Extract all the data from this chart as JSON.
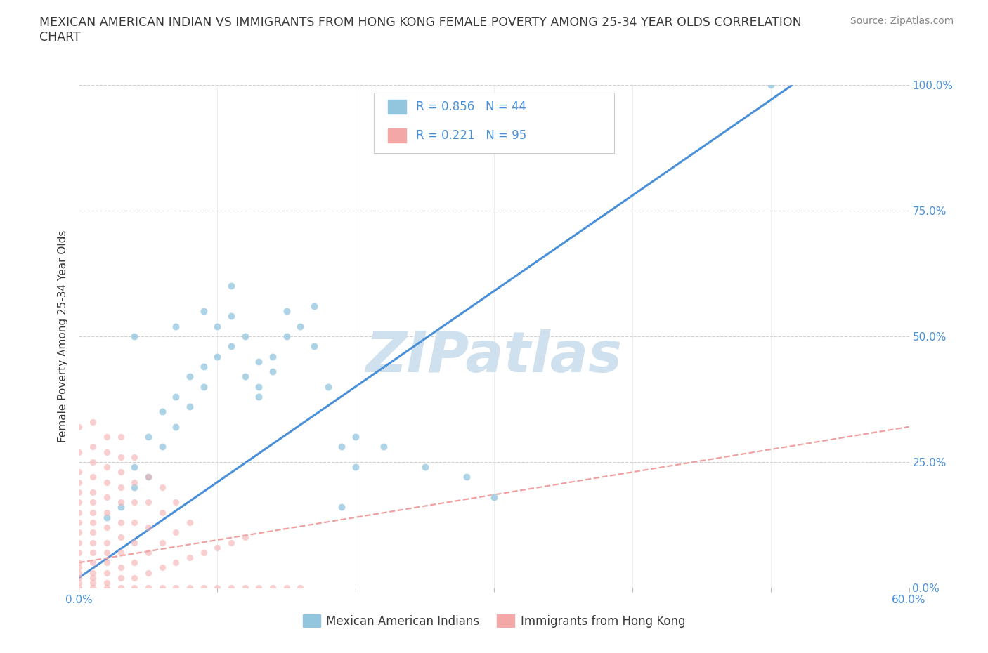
{
  "title": "MEXICAN AMERICAN INDIAN VS IMMIGRANTS FROM HONG KONG FEMALE POVERTY AMONG 25-34 YEAR OLDS CORRELATION\nCHART",
  "source_text": "Source: ZipAtlas.com",
  "ylabel": "Female Poverty Among 25-34 Year Olds",
  "xlim": [
    0,
    0.6
  ],
  "ylim": [
    0,
    1.0
  ],
  "blue_color": "#92c5de",
  "pink_color": "#f4a7a7",
  "blue_label": "Mexican American Indians",
  "pink_label": "Immigrants from Hong Kong",
  "R_blue": 0.856,
  "N_blue": 44,
  "R_pink": 0.221,
  "N_pink": 95,
  "watermark": "ZIPatlas",
  "watermark_color": "#cfe0ee",
  "blue_scatter": [
    [
      0.02,
      0.14
    ],
    [
      0.03,
      0.16
    ],
    [
      0.04,
      0.2
    ],
    [
      0.04,
      0.24
    ],
    [
      0.05,
      0.22
    ],
    [
      0.05,
      0.3
    ],
    [
      0.06,
      0.28
    ],
    [
      0.06,
      0.35
    ],
    [
      0.07,
      0.32
    ],
    [
      0.07,
      0.38
    ],
    [
      0.08,
      0.36
    ],
    [
      0.08,
      0.42
    ],
    [
      0.09,
      0.4
    ],
    [
      0.09,
      0.44
    ],
    [
      0.1,
      0.46
    ],
    [
      0.1,
      0.52
    ],
    [
      0.11,
      0.48
    ],
    [
      0.11,
      0.54
    ],
    [
      0.12,
      0.5
    ],
    [
      0.12,
      0.42
    ],
    [
      0.13,
      0.45
    ],
    [
      0.13,
      0.38
    ],
    [
      0.14,
      0.43
    ],
    [
      0.14,
      0.46
    ],
    [
      0.15,
      0.5
    ],
    [
      0.15,
      0.55
    ],
    [
      0.16,
      0.52
    ],
    [
      0.17,
      0.56
    ],
    [
      0.17,
      0.48
    ],
    [
      0.18,
      0.4
    ],
    [
      0.19,
      0.28
    ],
    [
      0.2,
      0.3
    ],
    [
      0.2,
      0.24
    ],
    [
      0.22,
      0.28
    ],
    [
      0.09,
      0.55
    ],
    [
      0.25,
      0.24
    ],
    [
      0.28,
      0.22
    ],
    [
      0.11,
      0.6
    ],
    [
      0.07,
      0.52
    ],
    [
      0.04,
      0.5
    ],
    [
      0.5,
      1.0
    ],
    [
      0.3,
      0.18
    ],
    [
      0.13,
      0.4
    ],
    [
      0.19,
      0.16
    ]
  ],
  "pink_scatter": [
    [
      0.0,
      0.0
    ],
    [
      0.0,
      0.01
    ],
    [
      0.0,
      0.02
    ],
    [
      0.0,
      0.03
    ],
    [
      0.0,
      0.04
    ],
    [
      0.0,
      0.05
    ],
    [
      0.0,
      0.07
    ],
    [
      0.0,
      0.09
    ],
    [
      0.0,
      0.11
    ],
    [
      0.0,
      0.13
    ],
    [
      0.0,
      0.15
    ],
    [
      0.0,
      0.17
    ],
    [
      0.0,
      0.19
    ],
    [
      0.0,
      0.21
    ],
    [
      0.0,
      0.23
    ],
    [
      0.01,
      0.0
    ],
    [
      0.01,
      0.01
    ],
    [
      0.01,
      0.02
    ],
    [
      0.01,
      0.03
    ],
    [
      0.01,
      0.05
    ],
    [
      0.01,
      0.07
    ],
    [
      0.01,
      0.09
    ],
    [
      0.01,
      0.11
    ],
    [
      0.01,
      0.13
    ],
    [
      0.01,
      0.15
    ],
    [
      0.01,
      0.17
    ],
    [
      0.01,
      0.19
    ],
    [
      0.01,
      0.22
    ],
    [
      0.01,
      0.25
    ],
    [
      0.02,
      0.0
    ],
    [
      0.02,
      0.01
    ],
    [
      0.02,
      0.03
    ],
    [
      0.02,
      0.05
    ],
    [
      0.02,
      0.07
    ],
    [
      0.02,
      0.09
    ],
    [
      0.02,
      0.12
    ],
    [
      0.02,
      0.15
    ],
    [
      0.02,
      0.18
    ],
    [
      0.02,
      0.21
    ],
    [
      0.02,
      0.24
    ],
    [
      0.03,
      0.0
    ],
    [
      0.03,
      0.02
    ],
    [
      0.03,
      0.04
    ],
    [
      0.03,
      0.07
    ],
    [
      0.03,
      0.1
    ],
    [
      0.03,
      0.13
    ],
    [
      0.03,
      0.17
    ],
    [
      0.03,
      0.2
    ],
    [
      0.03,
      0.23
    ],
    [
      0.03,
      0.26
    ],
    [
      0.04,
      0.0
    ],
    [
      0.04,
      0.02
    ],
    [
      0.04,
      0.05
    ],
    [
      0.04,
      0.09
    ],
    [
      0.04,
      0.13
    ],
    [
      0.04,
      0.17
    ],
    [
      0.04,
      0.21
    ],
    [
      0.05,
      0.0
    ],
    [
      0.05,
      0.03
    ],
    [
      0.05,
      0.07
    ],
    [
      0.05,
      0.12
    ],
    [
      0.05,
      0.17
    ],
    [
      0.05,
      0.22
    ],
    [
      0.06,
      0.0
    ],
    [
      0.06,
      0.04
    ],
    [
      0.06,
      0.09
    ],
    [
      0.06,
      0.15
    ],
    [
      0.06,
      0.2
    ],
    [
      0.07,
      0.0
    ],
    [
      0.07,
      0.05
    ],
    [
      0.07,
      0.11
    ],
    [
      0.07,
      0.17
    ],
    [
      0.08,
      0.0
    ],
    [
      0.08,
      0.06
    ],
    [
      0.08,
      0.13
    ],
    [
      0.09,
      0.0
    ],
    [
      0.09,
      0.07
    ],
    [
      0.1,
      0.0
    ],
    [
      0.1,
      0.08
    ],
    [
      0.11,
      0.0
    ],
    [
      0.11,
      0.09
    ],
    [
      0.12,
      0.0
    ],
    [
      0.12,
      0.1
    ],
    [
      0.13,
      0.0
    ],
    [
      0.14,
      0.0
    ],
    [
      0.15,
      0.0
    ],
    [
      0.16,
      0.0
    ],
    [
      0.0,
      0.27
    ],
    [
      0.01,
      0.28
    ],
    [
      0.02,
      0.27
    ],
    [
      0.03,
      0.3
    ],
    [
      0.04,
      0.26
    ],
    [
      0.0,
      0.32
    ],
    [
      0.01,
      0.33
    ],
    [
      0.02,
      0.3
    ]
  ],
  "blue_line_color": "#4a90d9",
  "pink_line_color": "#f0a0a0",
  "background_color": "#ffffff",
  "title_color": "#3a3a3a",
  "tick_color": "#4a90d9"
}
